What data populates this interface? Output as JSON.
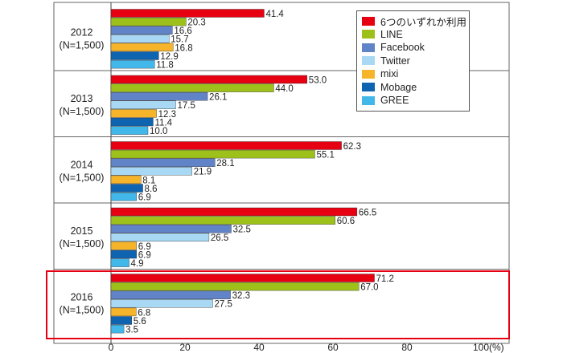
{
  "chart_data": {
    "type": "bar",
    "orientation": "horizontal",
    "categories": [
      "2012\n(N=1,500)",
      "2013\n(N=1,500)",
      "2014\n(N=1,500)",
      "2015\n(N=1,500)",
      "2016\n(N=1,500)"
    ],
    "series": [
      {
        "name": "6つのいずれか利用",
        "color": "#e60012",
        "values": [
          41.4,
          53.0,
          62.3,
          66.5,
          71.2
        ]
      },
      {
        "name": "LINE",
        "color": "#9dc11a",
        "values": [
          20.3,
          44.0,
          55.1,
          60.6,
          67.0
        ]
      },
      {
        "name": "Facebook",
        "color": "#6183c7",
        "values": [
          16.6,
          26.1,
          28.1,
          32.5,
          32.3
        ]
      },
      {
        "name": "Twitter",
        "color": "#a9d8f4",
        "values": [
          15.7,
          17.5,
          21.9,
          26.5,
          27.5
        ]
      },
      {
        "name": "mixi",
        "color": "#f6b42b",
        "values": [
          16.8,
          12.3,
          8.1,
          6.9,
          6.8
        ]
      },
      {
        "name": "Mobage",
        "color": "#0f64b2",
        "values": [
          12.9,
          11.4,
          8.6,
          6.9,
          5.6
        ]
      },
      {
        "name": "GREE",
        "color": "#41b7ea",
        "values": [
          11.8,
          10.0,
          6.9,
          4.9,
          3.5
        ]
      }
    ],
    "value_labels": [
      [
        "41.4",
        "53.0",
        "62.3",
        "66.5",
        "71.2"
      ],
      [
        "20.3",
        "44.0",
        "55.1",
        "60.6",
        "67.0"
      ],
      [
        "16.6",
        "26.1",
        "28.1",
        "32.5",
        "32.3"
      ],
      [
        "15.7",
        "17.5",
        "21.9",
        "26.5",
        "27.5"
      ],
      [
        "16.8",
        "12.3",
        "8.1",
        "6.9",
        "6.8"
      ],
      [
        "12.9",
        "11.4",
        "8.6",
        "6.9",
        "5.6"
      ],
      [
        "11.8",
        "10.0",
        "6.9",
        "4.9",
        "3.5"
      ]
    ],
    "x_ticks": [
      "0",
      "20",
      "40",
      "60",
      "80",
      "100"
    ],
    "x_unit": "(%)",
    "xlim": [
      0,
      100
    ],
    "grid": false,
    "legend_position": "top-right",
    "highlighted_category": "2016\n(N=1,500)",
    "highlight_color": "#e50012"
  }
}
